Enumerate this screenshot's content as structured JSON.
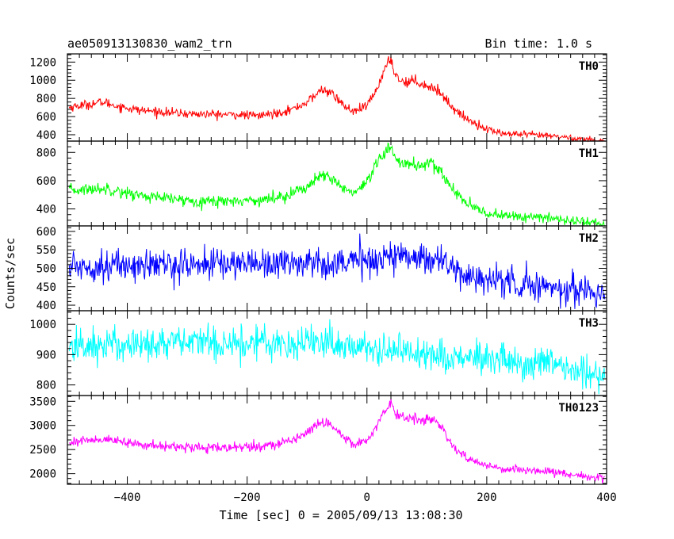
{
  "header": {
    "title": "ae050913130830_wam2_trn",
    "bin_time": "Bin time: 1.0 s"
  },
  "chart_data": {
    "type": "line",
    "title": "ae050913130830_wam2_trn",
    "xlabel": "Time [sec] 0 = 2005/09/13 13:08:30",
    "ylabel": "Counts/sec",
    "xlim": [
      -500,
      400
    ],
    "x_ticks": [
      -400,
      -200,
      0,
      200,
      400
    ],
    "grid": false,
    "panels": [
      {
        "name": "TH0",
        "color": "#ff0000",
        "ylim": [
          330,
          1290
        ],
        "y_ticks": [
          400,
          600,
          800,
          1000,
          1200
        ],
        "x": [
          -500,
          -460,
          -440,
          -420,
          -380,
          -340,
          -300,
          -260,
          -220,
          -180,
          -150,
          -120,
          -100,
          -85,
          -75,
          -65,
          -50,
          -35,
          -20,
          0,
          15,
          25,
          35,
          40,
          45,
          55,
          65,
          80,
          95,
          110,
          125,
          140,
          160,
          180,
          200,
          230,
          270,
          320,
          360,
          400
        ],
        "values": [
          700,
          740,
          760,
          720,
          670,
          650,
          630,
          625,
          620,
          610,
          640,
          690,
          760,
          840,
          900,
          880,
          800,
          700,
          650,
          720,
          880,
          1050,
          1180,
          1250,
          1100,
          1000,
          980,
          1000,
          950,
          920,
          850,
          720,
          600,
          530,
          460,
          410,
          400,
          380,
          350,
          330
        ]
      },
      {
        "name": "TH1",
        "color": "#00ff00",
        "ylim": [
          280,
          880
        ],
        "y_ticks": [
          400,
          600,
          800
        ],
        "x": [
          -500,
          -460,
          -430,
          -400,
          -350,
          -300,
          -250,
          -200,
          -160,
          -120,
          -100,
          -80,
          -70,
          -55,
          -40,
          -20,
          0,
          15,
          30,
          40,
          50,
          60,
          80,
          100,
          120,
          140,
          160,
          180,
          200,
          240,
          280,
          320,
          360,
          400
        ],
        "values": [
          530,
          540,
          545,
          510,
          480,
          460,
          455,
          460,
          470,
          520,
          560,
          620,
          630,
          600,
          550,
          510,
          580,
          700,
          800,
          830,
          760,
          720,
          710,
          720,
          680,
          560,
          460,
          400,
          370,
          350,
          340,
          330,
          310,
          290
        ]
      },
      {
        "name": "TH2",
        "color": "#0000ff",
        "ylim": [
          385,
          615
        ],
        "y_ticks": [
          400,
          450,
          500,
          550,
          600
        ],
        "x": [
          -500,
          -400,
          -300,
          -200,
          -100,
          0,
          50,
          100,
          130,
          150,
          200,
          250,
          300,
          350,
          400
        ],
        "values": [
          505,
          508,
          510,
          515,
          515,
          520,
          535,
          530,
          520,
          485,
          470,
          460,
          450,
          440,
          435
        ]
      },
      {
        "name": "TH3",
        "color": "#00ffff",
        "ylim": [
          765,
          1045
        ],
        "y_ticks": [
          800,
          900,
          1000
        ],
        "x": [
          -500,
          -400,
          -300,
          -200,
          -100,
          -80,
          0,
          100,
          200,
          300,
          350,
          400
        ],
        "values": [
          925,
          935,
          940,
          940,
          940,
          945,
          920,
          905,
          880,
          865,
          845,
          830
        ]
      },
      {
        "name": "TH0123",
        "color": "#ff00ff",
        "ylim": [
          1780,
          3620
        ],
        "y_ticks": [
          2000,
          2500,
          3000,
          3500
        ],
        "x": [
          -500,
          -460,
          -440,
          -420,
          -380,
          -340,
          -300,
          -260,
          -220,
          -180,
          -150,
          -120,
          -100,
          -85,
          -75,
          -65,
          -50,
          -35,
          -20,
          0,
          15,
          25,
          35,
          40,
          45,
          55,
          65,
          80,
          95,
          110,
          125,
          140,
          160,
          180,
          200,
          230,
          270,
          320,
          360,
          400
        ],
        "values": [
          2650,
          2700,
          2720,
          2680,
          2600,
          2570,
          2550,
          2540,
          2540,
          2560,
          2620,
          2720,
          2850,
          3000,
          3080,
          3050,
          2900,
          2720,
          2620,
          2700,
          2950,
          3200,
          3400,
          3480,
          3300,
          3200,
          3150,
          3180,
          3120,
          3080,
          2980,
          2600,
          2380,
          2250,
          2160,
          2100,
          2080,
          2020,
          1950,
          1910
        ]
      }
    ]
  }
}
